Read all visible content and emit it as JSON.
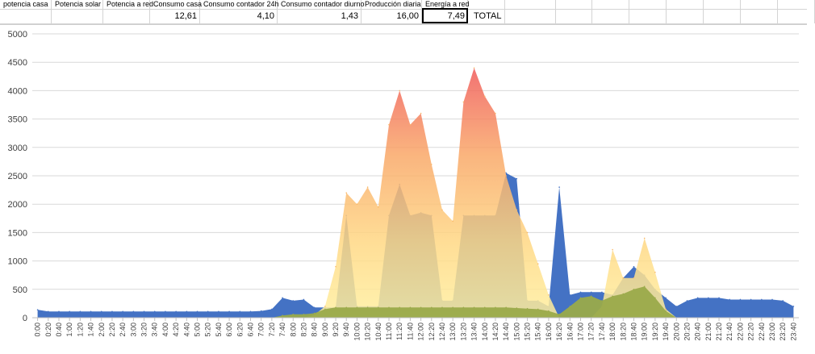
{
  "sheet": {
    "headers": [
      "potencia casa",
      "Potencia solar",
      "Potencia a red",
      "Consumo casa",
      "Consumo contador 24h",
      "Consumo contador diurno",
      "Producción diaria",
      "Energía a red"
    ],
    "values": [
      "",
      "",
      "",
      "12,61",
      "4,10",
      "1,43",
      "16,00",
      "7,49"
    ],
    "total_label": "TOTAL"
  },
  "colors": {
    "home": "#4472c4",
    "solar_top": "#f36b6b",
    "solar_mid": "#f9b868",
    "solar_low": "#ffe58a",
    "grid": "#9aaa4a"
  },
  "chart_data": {
    "type": "area",
    "title": "",
    "xlabel": "",
    "ylabel": "",
    "ylim": [
      0,
      5000
    ],
    "yticks": [
      0,
      500,
      1000,
      1500,
      2000,
      2500,
      3000,
      3500,
      4000,
      4500,
      5000
    ],
    "grid": true,
    "x_step_minutes": 20,
    "categories": [
      "0:00",
      "0:20",
      "0:40",
      "1:00",
      "1:20",
      "1:40",
      "2:00",
      "2:20",
      "2:40",
      "3:00",
      "3:20",
      "3:40",
      "4:00",
      "4:20",
      "4:40",
      "5:00",
      "5:20",
      "5:40",
      "6:00",
      "6:20",
      "6:40",
      "7:00",
      "7:20",
      "7:40",
      "8:00",
      "8:20",
      "8:40",
      "9:00",
      "9:20",
      "9:40",
      "10:00",
      "10:20",
      "10:40",
      "11:00",
      "11:20",
      "11:40",
      "12:00",
      "12:20",
      "12:40",
      "13:00",
      "13:20",
      "13:40",
      "14:00",
      "14:20",
      "14:40",
      "15:00",
      "15:20",
      "15:40",
      "16:00",
      "16:20",
      "16:40",
      "17:00",
      "17:20",
      "17:40",
      "18:00",
      "18:20",
      "18:40",
      "19:00",
      "19:20",
      "19:40",
      "20:00",
      "20:20",
      "20:40",
      "21:00",
      "21:20",
      "21:40",
      "22:00",
      "22:20",
      "22:40",
      "23:00",
      "23:20",
      "23:40"
    ],
    "series": [
      {
        "color": "#4472c4",
        "values": [
          140,
          110,
          110,
          110,
          110,
          110,
          110,
          110,
          110,
          110,
          110,
          110,
          110,
          110,
          110,
          110,
          110,
          110,
          110,
          110,
          110,
          120,
          150,
          350,
          300,
          320,
          180,
          180,
          180,
          1800,
          200,
          200,
          200,
          1800,
          2350,
          1800,
          1850,
          1800,
          300,
          300,
          1800,
          1800,
          1800,
          1800,
          2550,
          2450,
          300,
          300,
          200,
          2300,
          400,
          450,
          450,
          450,
          400,
          700,
          900,
          750,
          500,
          350,
          200,
          300,
          350,
          350,
          350,
          320,
          320,
          320,
          320,
          320,
          300,
          200
        ]
      },
      {
        "color": "#f9b868",
        "values": [
          0,
          0,
          0,
          0,
          0,
          0,
          0,
          0,
          0,
          0,
          0,
          0,
          0,
          0,
          0,
          0,
          0,
          0,
          0,
          0,
          0,
          0,
          0,
          0,
          0,
          0,
          50,
          200,
          900,
          2200,
          2000,
          2300,
          1950,
          3400,
          4000,
          3400,
          3600,
          2700,
          1900,
          1700,
          3800,
          4400,
          3900,
          3600,
          2500,
          1900,
          1500,
          950,
          400,
          0,
          0,
          0,
          0,
          200,
          1200,
          700,
          700,
          1400,
          800,
          150,
          0,
          0,
          0,
          0,
          0,
          0,
          0,
          0,
          0,
          0,
          0,
          0
        ]
      },
      {
        "color": "#9aaa4a",
        "values": [
          0,
          0,
          0,
          0,
          0,
          0,
          0,
          0,
          0,
          0,
          0,
          0,
          0,
          0,
          0,
          0,
          0,
          0,
          0,
          0,
          0,
          0,
          0,
          40,
          60,
          60,
          80,
          150,
          180,
          180,
          180,
          180,
          180,
          180,
          180,
          180,
          180,
          180,
          180,
          180,
          180,
          180,
          180,
          180,
          180,
          170,
          160,
          150,
          120,
          60,
          200,
          350,
          380,
          300,
          380,
          420,
          500,
          550,
          350,
          120,
          0,
          0,
          0,
          0,
          0,
          0,
          0,
          0,
          0,
          0,
          0,
          0
        ]
      }
    ]
  }
}
